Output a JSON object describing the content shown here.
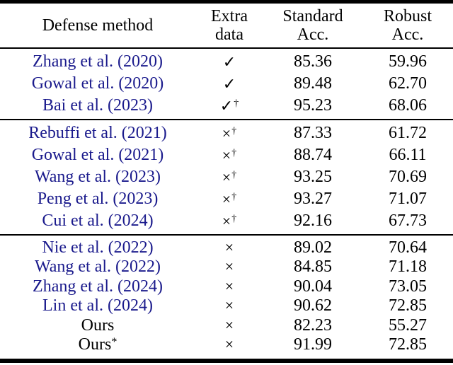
{
  "page": {
    "background": "#ffffff"
  },
  "colors": {
    "citation_link": "#1a1a8c",
    "text": "#000000",
    "rule": "#000000"
  },
  "symbols": {
    "check-icon": "✓",
    "cross-icon": "×",
    "dagger-icon": "†"
  },
  "table": {
    "header": {
      "defense_method": "Defense method",
      "extra_data_line1": "Extra",
      "extra_data_line2": "data",
      "standard_line1": "Standard",
      "standard_line2": "Acc.",
      "robust_line1": "Robust",
      "robust_line2": "Acc."
    },
    "groups": [
      {
        "rows": [
          {
            "method": "Zhang et al. (2020)",
            "link": true,
            "mark": "check",
            "dagger": false,
            "standard": "85.36",
            "robust": "59.96"
          },
          {
            "method": "Gowal et al. (2020)",
            "link": true,
            "mark": "check",
            "dagger": false,
            "standard": "89.48",
            "robust": "62.70"
          },
          {
            "method": "Bai et al. (2023)",
            "link": true,
            "mark": "check",
            "dagger": true,
            "standard": "95.23",
            "robust": "68.06"
          }
        ]
      },
      {
        "rows": [
          {
            "method": "Rebuffi et al. (2021)",
            "link": true,
            "mark": "cross",
            "dagger": true,
            "standard": "87.33",
            "robust": "61.72"
          },
          {
            "method": "Gowal et al. (2021)",
            "link": true,
            "mark": "cross",
            "dagger": true,
            "standard": "88.74",
            "robust": "66.11"
          },
          {
            "method": "Wang et al. (2023)",
            "link": true,
            "mark": "cross",
            "dagger": true,
            "standard": "93.25",
            "robust": "70.69"
          },
          {
            "method": "Peng et al. (2023)",
            "link": true,
            "mark": "cross",
            "dagger": true,
            "standard": "93.27",
            "robust": "71.07"
          },
          {
            "method": "Cui et al. (2024)",
            "link": true,
            "mark": "cross",
            "dagger": true,
            "standard": "92.16",
            "robust": "67.73"
          }
        ]
      },
      {
        "rows": [
          {
            "method": "Nie et al. (2022)",
            "link": true,
            "mark": "cross",
            "dagger": false,
            "standard": "89.02",
            "robust": "70.64"
          },
          {
            "method": "Wang et al. (2022)",
            "link": true,
            "mark": "cross",
            "dagger": false,
            "standard": "84.85",
            "robust": "71.18"
          },
          {
            "method": "Zhang et al. (2024)",
            "link": true,
            "mark": "cross",
            "dagger": false,
            "standard": "90.04",
            "robust": "73.05"
          },
          {
            "method": "Lin et al. (2024)",
            "link": true,
            "mark": "cross",
            "dagger": false,
            "standard": "90.62",
            "robust": "72.85"
          },
          {
            "method": "Ours",
            "link": false,
            "mark": "cross",
            "dagger": false,
            "standard": "82.23",
            "robust": "55.27"
          },
          {
            "method": "Ours",
            "method_sup": "*",
            "link": false,
            "mark": "cross",
            "dagger": false,
            "standard": "91.99",
            "robust": "72.85"
          }
        ]
      }
    ]
  }
}
